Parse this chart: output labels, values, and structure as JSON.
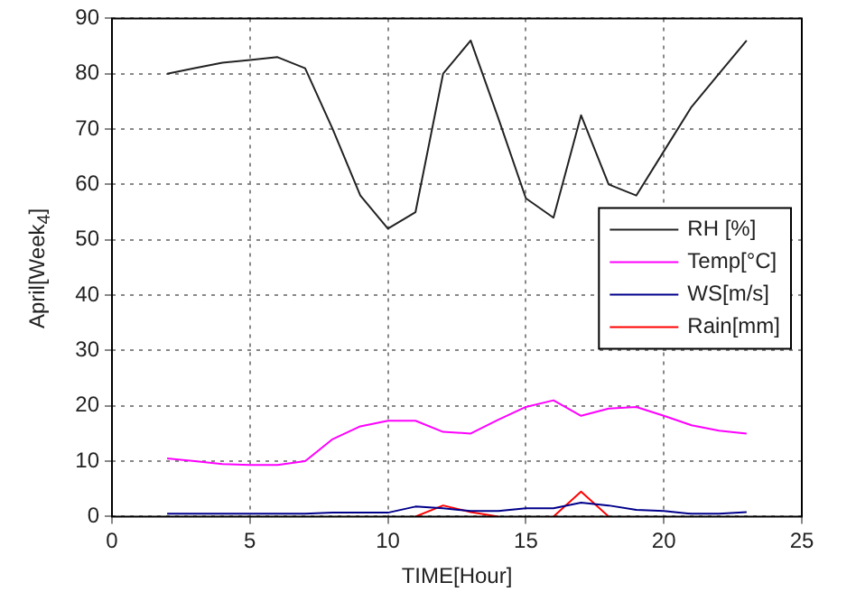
{
  "chart_data": {
    "type": "line",
    "xlabel": "TIME[Hour]",
    "ylabel": "April[Week$_{4}$]",
    "x": [
      2,
      3,
      4,
      5,
      6,
      7,
      8,
      9,
      10,
      11,
      12,
      13,
      14,
      15,
      16,
      17,
      18,
      19,
      20,
      21,
      22,
      23
    ],
    "series": [
      {
        "name": "RH [%]",
        "color": "#222222",
        "values": [
          80,
          81,
          82,
          82.5,
          83,
          81,
          70,
          58,
          52,
          55,
          80,
          86,
          72,
          57.5,
          54,
          72.5,
          60,
          58,
          66,
          74,
          80,
          86
        ]
      },
      {
        "name": "Temp[°C]",
        "color": "#ff00ff",
        "values": [
          10.5,
          10,
          9.5,
          9.3,
          9.3,
          10,
          14,
          16.3,
          17.3,
          17.3,
          15.3,
          15,
          17.5,
          19.8,
          21,
          18.2,
          19.5,
          19.8,
          18.2,
          16.5,
          15.5,
          15
        ]
      },
      {
        "name": "WS[m/s]",
        "color": "#00008b",
        "values": [
          0.5,
          0.5,
          0.5,
          0.5,
          0.5,
          0.5,
          0.7,
          0.7,
          0.7,
          1.8,
          1.5,
          1,
          1,
          1.5,
          1.5,
          2.5,
          2,
          1.2,
          1,
          0.5,
          0.5,
          0.8
        ]
      },
      {
        "name": "Rain[mm]",
        "color": "#ff0000",
        "values": [
          null,
          null,
          null,
          null,
          null,
          null,
          null,
          null,
          null,
          0,
          2,
          0.8,
          0,
          null,
          0,
          4.5,
          0,
          null,
          null,
          null,
          null,
          null
        ]
      }
    ],
    "xlim": [
      0,
      25
    ],
    "xticks": [
      0,
      5,
      10,
      15,
      20,
      25
    ],
    "ylim": [
      0,
      90
    ],
    "yticks": [
      0,
      10,
      20,
      30,
      40,
      50,
      60,
      70,
      80,
      90
    ],
    "grid": true,
    "legend": "right",
    "marker": "none",
    "line_style": "solid"
  }
}
